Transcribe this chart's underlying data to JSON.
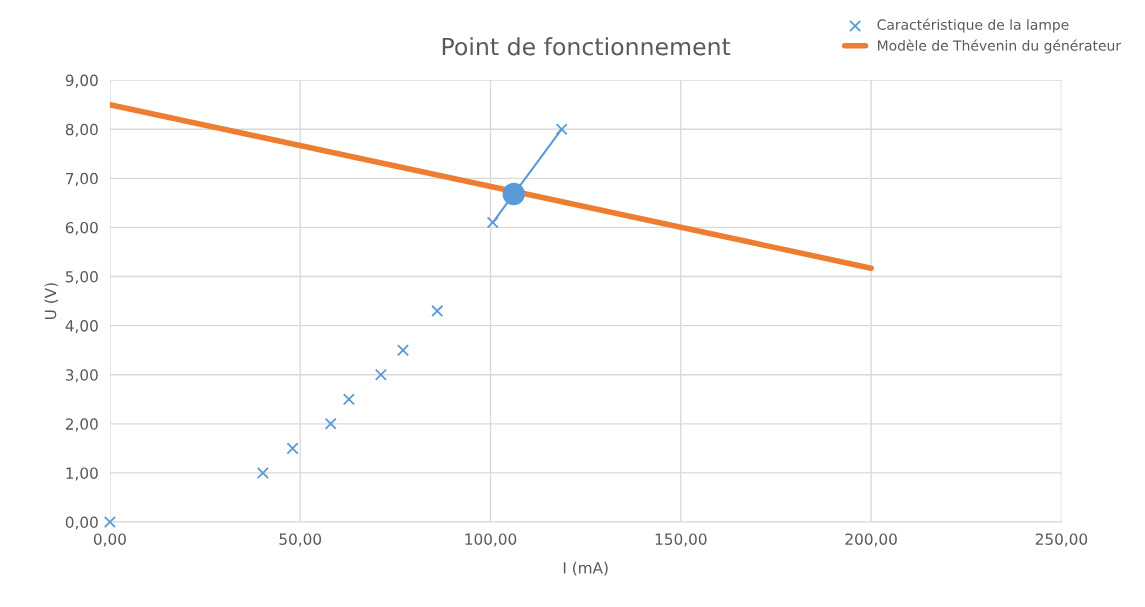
{
  "chart_data": {
    "type": "scatter",
    "title": "Point de fonctionnement",
    "xlabel": "I (mA)",
    "ylabel": "U (V)",
    "series": [
      {
        "name": "Caractéristique de la lampe",
        "color": "#5b9bd5",
        "marker": "cross",
        "x": [
          0,
          40.2,
          48,
          58,
          62.8,
          71.2,
          77,
          86,
          100.6,
          118.7
        ],
        "values": [
          0,
          1.0,
          1.5,
          2.0,
          2.5,
          3.0,
          3.5,
          4.3,
          6.1,
          8.0
        ]
      },
      {
        "name": "Modèle de Thévenin du générateur",
        "type": "line",
        "color": "#ed7d31",
        "marker": "none",
        "x": [
          0,
          200
        ],
        "values": [
          8.5,
          5.17
        ]
      },
      {
        "type": "line",
        "color": "#5b9bd5",
        "marker": "none",
        "x": [
          100.6,
          106.1,
          118.7
        ],
        "values": [
          6.1,
          6.68,
          8.0
        ]
      },
      {
        "color": "#5b9bd5",
        "marker": "circle",
        "x": [
          106.1
        ],
        "values": [
          6.68
        ]
      }
    ],
    "xlim": [
      0,
      250
    ],
    "ylim": [
      0,
      9
    ],
    "xticks": [
      {
        "value": 0,
        "label": "0,00"
      },
      {
        "value": 50,
        "label": "50,00"
      },
      {
        "value": 100,
        "label": "100,00"
      },
      {
        "value": 150,
        "label": "150,00"
      },
      {
        "value": 200,
        "label": "200,00"
      },
      {
        "value": 250,
        "label": "250,00"
      }
    ],
    "yticks": [
      {
        "value": 0,
        "label": "0,00"
      },
      {
        "value": 1,
        "label": "1,00"
      },
      {
        "value": 2,
        "label": "2,00"
      },
      {
        "value": 3,
        "label": "3,00"
      },
      {
        "value": 4,
        "label": "4,00"
      },
      {
        "value": 5,
        "label": "5,00"
      },
      {
        "value": 6,
        "label": "6,00"
      },
      {
        "value": 7,
        "label": "7,00"
      },
      {
        "value": 8,
        "label": "8,00"
      },
      {
        "value": 9,
        "label": "9,00"
      }
    ],
    "grid": true,
    "legend": "top right"
  }
}
